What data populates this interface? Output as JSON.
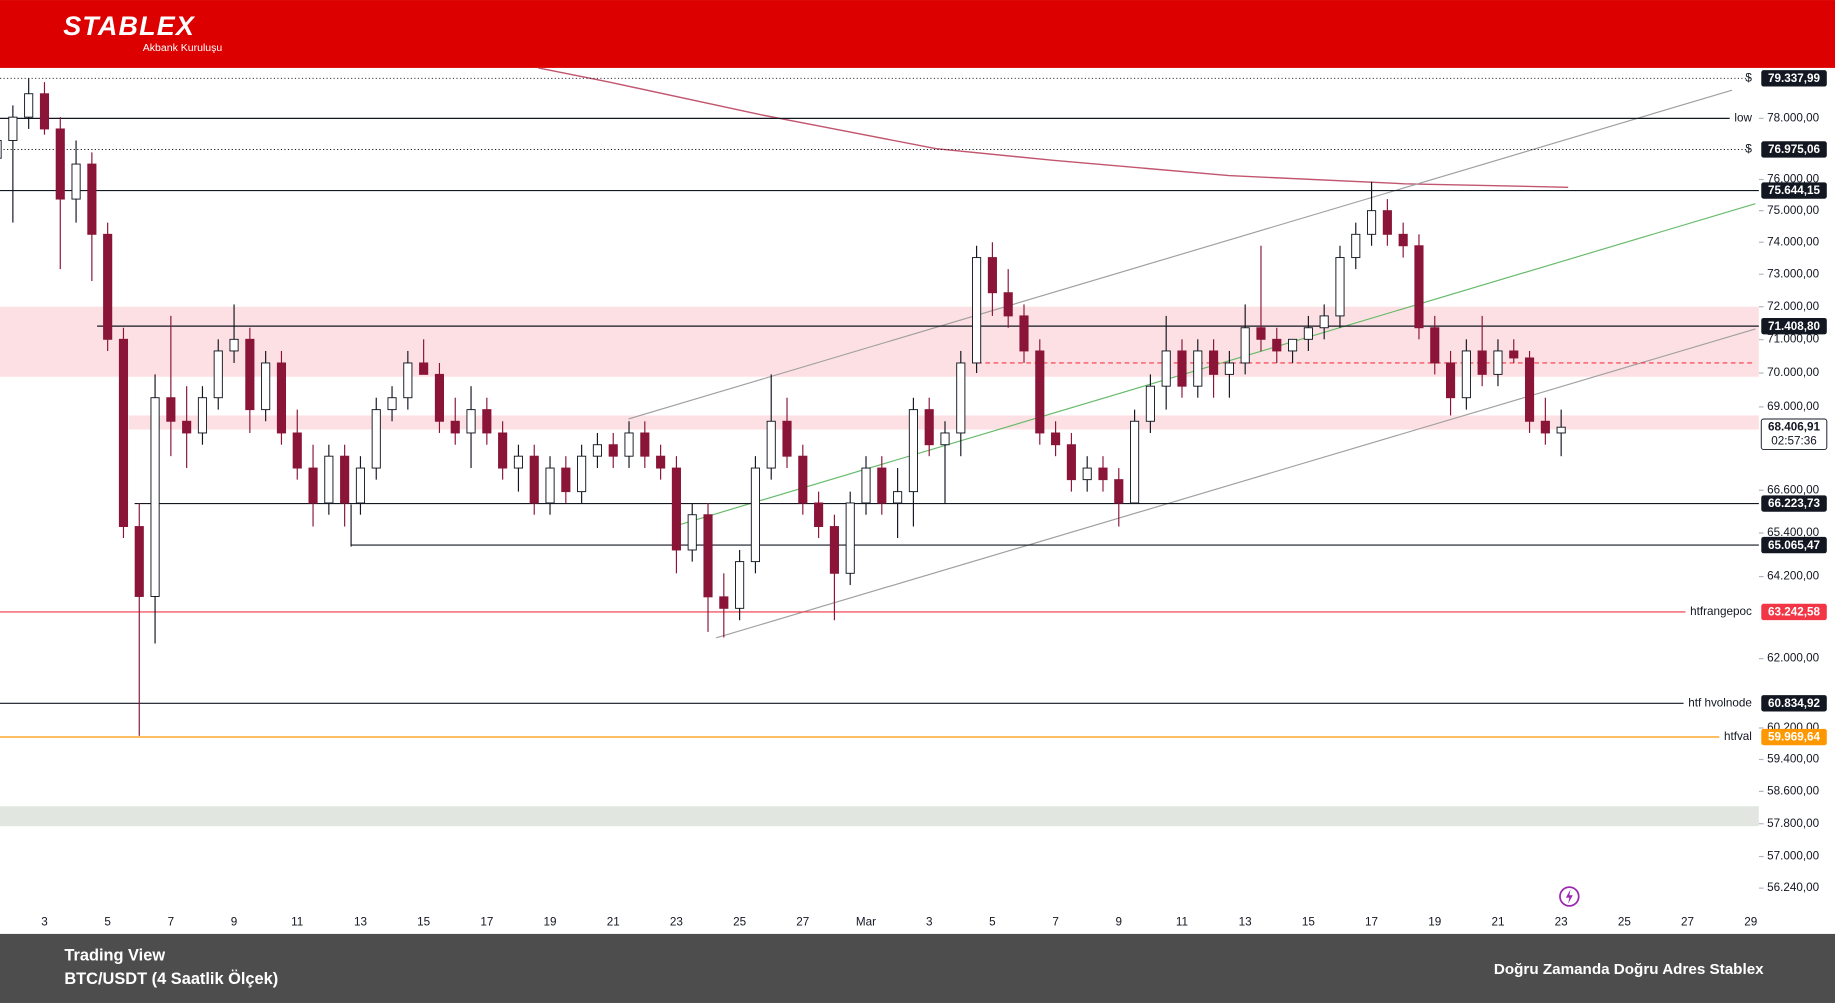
{
  "header": {
    "logo": "STABLEX",
    "tagline": "Akbank Kuruluşu"
  },
  "footer": {
    "source": "Trading View",
    "pair": "BTC/USDT (4 Saatlik Ölçek)",
    "slogan": "Doğru Zamanda Doğru Adres Stablex"
  },
  "chart_data": {
    "type": "candlestick",
    "log_scale": true,
    "grid": false,
    "up_color": "#ffffff",
    "down_color": "#8a1538",
    "categories": [
      null,
      null,
      null,
      "3",
      null,
      null,
      null,
      "5",
      null,
      null,
      null,
      "7",
      null,
      null,
      null,
      "9",
      null,
      null,
      null,
      "11",
      null,
      null,
      null,
      "13",
      null,
      null,
      null,
      "15",
      null,
      null,
      null,
      "17",
      null,
      null,
      null,
      "19",
      null,
      null,
      null,
      "21",
      null,
      null,
      null,
      "23",
      null,
      null,
      null,
      "25",
      null,
      null,
      null,
      "27",
      null,
      null,
      null,
      "Mar",
      null,
      null,
      null,
      "3",
      null,
      null,
      null,
      "5",
      null,
      null,
      null,
      "7",
      null,
      null,
      null,
      "9",
      null,
      null,
      null,
      "11",
      null,
      null,
      null,
      "13",
      null,
      null,
      null,
      "15",
      null,
      null,
      null,
      "17",
      null,
      null,
      null,
      "19",
      null,
      null,
      null,
      "21",
      null,
      null,
      null,
      "23",
      null,
      null,
      null,
      "25",
      null,
      null,
      null,
      "27",
      null,
      null,
      null,
      "29"
    ],
    "open": [
      76690,
      77270,
      78040,
      78820,
      77650,
      75370,
      76500,
      74250,
      71010,
      65580,
      63660,
      69270,
      68580,
      68240,
      69270,
      70660,
      71010,
      68920,
      70300,
      68240,
      67230,
      66240,
      67570,
      66240,
      67230,
      68920,
      69270,
      70300,
      69960,
      68580,
      68240,
      68920,
      68240,
      67230,
      67570,
      66240,
      67230,
      66560,
      67570,
      67900,
      67570,
      68240,
      67570,
      67230,
      64930,
      65910,
      63650,
      63340,
      64610,
      67230,
      68580,
      67570,
      66240,
      65580,
      64290,
      66240,
      67230,
      66240,
      66560,
      68920,
      67900,
      68240,
      70300,
      73520,
      72430,
      71720,
      70660,
      68240,
      67900,
      66900,
      67230,
      66900,
      66240,
      68580,
      69610,
      70660,
      69610,
      70660,
      69960,
      70300,
      71360,
      71010,
      70660,
      71010,
      71360,
      71720,
      73520,
      74250,
      75000,
      74250,
      73890,
      71360,
      70300,
      69270,
      70660,
      69960,
      70660,
      70450,
      68580,
      68240,
      null,
      null,
      null,
      null,
      null,
      null,
      null,
      null,
      null,
      null,
      null,
      null
    ],
    "high": [
      77650,
      78430,
      79340,
      79210,
      78040,
      77270,
      76880,
      74620,
      71360,
      66240,
      69960,
      71720,
      69610,
      69610,
      71010,
      72070,
      71360,
      70660,
      70660,
      68920,
      67900,
      67900,
      67900,
      67570,
      69270,
      69610,
      70660,
      71010,
      70300,
      69270,
      69610,
      69270,
      68580,
      67900,
      67900,
      67570,
      67570,
      67900,
      68240,
      68240,
      68580,
      68580,
      67900,
      67570,
      66240,
      66240,
      64290,
      64930,
      67570,
      69960,
      69270,
      67900,
      66560,
      65910,
      66560,
      67570,
      67570,
      67230,
      69270,
      69270,
      68580,
      70660,
      73890,
      74000,
      73160,
      72070,
      71010,
      68580,
      68240,
      67570,
      67570,
      67230,
      68920,
      69960,
      71720,
      71010,
      71010,
      71010,
      70660,
      72070,
      73890,
      71360,
      71010,
      71720,
      72070,
      73890,
      74620,
      75930,
      75370,
      74620,
      74250,
      71720,
      70660,
      71010,
      71720,
      71010,
      71010,
      70660,
      69270,
      68920,
      null,
      null,
      null,
      null,
      null,
      null,
      null,
      null,
      null,
      null,
      null,
      null
    ],
    "low": [
      75740,
      74620,
      77650,
      77460,
      73160,
      74620,
      72790,
      70660,
      65260,
      60000,
      62400,
      67570,
      67230,
      67900,
      68920,
      70300,
      68240,
      68580,
      67900,
      66900,
      65580,
      65910,
      65580,
      65910,
      66900,
      68580,
      68920,
      69960,
      68240,
      67900,
      67230,
      67900,
      66900,
      66560,
      65910,
      65910,
      66240,
      66240,
      67230,
      67230,
      67230,
      67230,
      66900,
      64290,
      64610,
      62710,
      62560,
      63020,
      64290,
      66900,
      67230,
      65910,
      65260,
      63020,
      63970,
      65910,
      65910,
      65260,
      65580,
      67570,
      66240,
      67570,
      70000,
      71720,
      71360,
      70300,
      67900,
      67570,
      66560,
      66560,
      66560,
      65580,
      66240,
      68240,
      68920,
      69270,
      69270,
      69270,
      69270,
      69960,
      70650,
      70300,
      70300,
      70660,
      71010,
      71360,
      73160,
      73890,
      73890,
      73520,
      71010,
      69960,
      68750,
      68920,
      69610,
      69610,
      70300,
      68240,
      67900,
      67570,
      null,
      null,
      null,
      null,
      null,
      null,
      null,
      null,
      null,
      null,
      null,
      null
    ],
    "close": [
      77270,
      78040,
      78820,
      77650,
      75370,
      76500,
      74250,
      71010,
      65580,
      63660,
      69270,
      68580,
      68240,
      69270,
      70660,
      71010,
      68920,
      70300,
      68240,
      67230,
      66240,
      67570,
      66240,
      67230,
      68920,
      69270,
      70300,
      69960,
      68580,
      68240,
      68920,
      68240,
      67230,
      67570,
      66240,
      67230,
      66560,
      67570,
      67900,
      67570,
      68240,
      67570,
      67230,
      64930,
      65910,
      63650,
      63340,
      64610,
      67230,
      68580,
      67570,
      66240,
      65580,
      64290,
      66240,
      67230,
      66240,
      66560,
      68920,
      67900,
      68240,
      70300,
      73520,
      72430,
      71720,
      70660,
      68240,
      67900,
      66900,
      67230,
      66900,
      66240,
      68580,
      69610,
      70660,
      69610,
      70660,
      69960,
      70300,
      71360,
      71010,
      70660,
      71010,
      71360,
      71720,
      73520,
      74250,
      75000,
      74250,
      73890,
      71360,
      70300,
      69270,
      70660,
      69960,
      70660,
      70450,
      68580,
      68240,
      68406.91,
      null,
      null,
      null,
      null,
      null,
      null,
      null,
      null,
      null,
      null,
      null,
      null
    ],
    "ylim": [
      55680,
      79690
    ],
    "yticks": [
      {
        "value": 56240,
        "label": "56.240,00"
      },
      {
        "value": 57000,
        "label": "57.000,00"
      },
      {
        "value": 57800,
        "label": "57.800,00"
      },
      {
        "value": 58600,
        "label": "58.600,00"
      },
      {
        "value": 59400,
        "label": "59.400,00"
      },
      {
        "value": 60200,
        "label": "60.200,00"
      },
      {
        "value": 62000,
        "label": "62.000,00"
      },
      {
        "value": 64200,
        "label": "64.200,00"
      },
      {
        "value": 65400,
        "label": "65.400,00"
      },
      {
        "value": 66600,
        "label": "66.600,00"
      },
      {
        "value": 69000,
        "label": "69.000,00"
      },
      {
        "value": 70000,
        "label": "70.000,00"
      },
      {
        "value": 71000,
        "label": "71.000,00"
      },
      {
        "value": 72000,
        "label": "72.000,00"
      },
      {
        "value": 73000,
        "label": "73.000,00"
      },
      {
        "value": 74000,
        "label": "74.000,00"
      },
      {
        "value": 75000,
        "label": "75.000,00"
      },
      {
        "value": 76000,
        "label": "76.000,00"
      },
      {
        "value": 78000,
        "label": "78.000,00"
      }
    ],
    "zones": [
      {
        "from": 69890,
        "to": 72000,
        "color": "#fde0e3"
      },
      {
        "from": 68340,
        "to": 68750,
        "color": "#fde0e3"
      },
      {
        "from": 57740,
        "to": 58230,
        "color": "#e2e6e1"
      }
    ],
    "levels": [
      {
        "value": 79337.99,
        "label": "79.337,99",
        "name": "$",
        "color": "#131722",
        "style": "dotted"
      },
      {
        "value": 78000,
        "name": "low",
        "color": "#131722",
        "style": "solid"
      },
      {
        "value": 76975.06,
        "label": "76.975,06",
        "name": "$",
        "color": "#131722",
        "style": "dotted"
      },
      {
        "value": 75644.15,
        "label": "75.644,15",
        "color": "#131722",
        "style": "solid"
      },
      {
        "value": 71408.8,
        "label": "71.408,80",
        "color": "#131722",
        "style": "solid"
      },
      {
        "value": 66223.73,
        "label": "66.223,73",
        "color": "#131722",
        "style": "solid"
      },
      {
        "value": 65065.47,
        "label": "65.065,47",
        "color": "#131722",
        "style": "solid"
      },
      {
        "value": 63242.58,
        "label": "63.242,58",
        "name": "htfrangepoc",
        "color": "#f23645",
        "style": "solid"
      },
      {
        "value": 60834.92,
        "label": "60.834,92",
        "name": "htf hvolnode",
        "color": "#131722",
        "style": "solid"
      },
      {
        "value": 59969.64,
        "label": "59.969,64",
        "name": "htfval",
        "color": "#ff9800",
        "style": "solid"
      },
      {
        "value": 70300,
        "color": "#f23645",
        "style": "dashed"
      }
    ],
    "last_price": {
      "value": 68406.91,
      "label": "68.406,91",
      "countdown": "02:57:36"
    }
  }
}
